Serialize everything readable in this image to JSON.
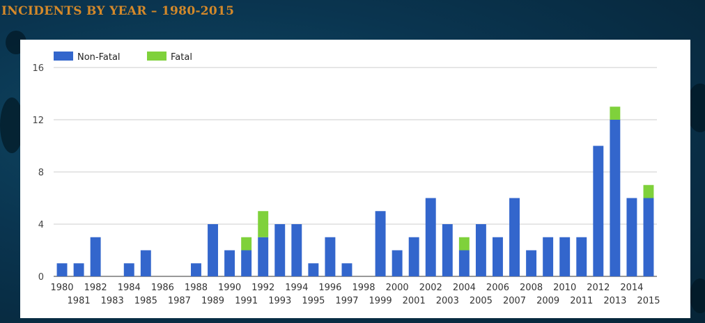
{
  "header": {
    "title": "INCIDENTS BY YEAR – 1980-2015"
  },
  "colors": {
    "non_fatal": "#3366cc",
    "fatal": "#7fd13b",
    "title": "#d4892a"
  },
  "chart_data": {
    "type": "bar",
    "stacked": true,
    "title": "INCIDENTS BY YEAR – 1980-2015",
    "xlabel": "",
    "ylabel": "",
    "ylim": [
      0,
      16
    ],
    "yticks": [
      0,
      4,
      8,
      12,
      16
    ],
    "grid": true,
    "legend_position": "top-left",
    "categories": [
      "1980",
      "1981",
      "1982",
      "1983",
      "1984",
      "1985",
      "1986",
      "1987",
      "1988",
      "1989",
      "1990",
      "1991",
      "1992",
      "1993",
      "1994",
      "1995",
      "1996",
      "1997",
      "1998",
      "1999",
      "2000",
      "2001",
      "2002",
      "2003",
      "2004",
      "2005",
      "2006",
      "2007",
      "2008",
      "2009",
      "2010",
      "2011",
      "2012",
      "2013",
      "2014",
      "2015"
    ],
    "series": [
      {
        "name": "Non-Fatal",
        "color": "#3366cc",
        "values": [
          1,
          1,
          3,
          0,
          1,
          2,
          0,
          0,
          1,
          4,
          2,
          2,
          3,
          4,
          4,
          1,
          3,
          1,
          0,
          5,
          2,
          3,
          6,
          4,
          2,
          4,
          3,
          6,
          2,
          3,
          3,
          3,
          10,
          12,
          6,
          6
        ]
      },
      {
        "name": "Fatal",
        "color": "#7fd13b",
        "values": [
          0,
          0,
          0,
          0,
          0,
          0,
          0,
          0,
          0,
          0,
          0,
          1,
          2,
          0,
          0,
          0,
          0,
          0,
          0,
          0,
          0,
          0,
          0,
          0,
          1,
          0,
          0,
          0,
          0,
          0,
          0,
          0,
          0,
          1,
          0,
          1
        ]
      }
    ]
  }
}
